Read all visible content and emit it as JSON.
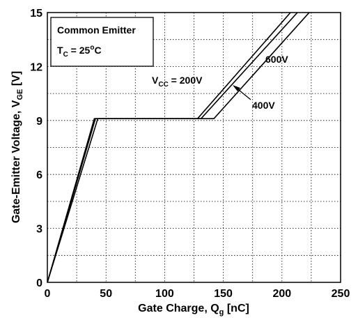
{
  "chart_data": {
    "type": "line",
    "title": "",
    "xlabel": "Gate Charge, Q",
    "xlabel_sub": "g",
    "xlabel_unit": " [nC]",
    "ylabel": "Gate-Emitter Voltage, V",
    "ylabel_sub": "GE",
    "ylabel_unit": " [V]",
    "xlim": [
      0,
      250
    ],
    "ylim": [
      0,
      15
    ],
    "xticks": [
      0,
      50,
      100,
      150,
      200,
      250
    ],
    "yticks": [
      0,
      3,
      6,
      9,
      12,
      15
    ],
    "grid": true,
    "legend_box": {
      "line1": "Common Emitter",
      "line2_main": "T",
      "line2_sub": "C",
      "line2_eq": " = 25",
      "line2_sup": "o",
      "line2_unit": "C"
    },
    "series": [
      {
        "name": "V_CC = 200V",
        "x": [
          0,
          40,
          128,
          210
        ],
        "y": [
          0,
          9.1,
          9.1,
          15.2
        ]
      },
      {
        "name": "400V",
        "x": [
          0,
          41,
          131,
          216
        ],
        "y": [
          0,
          9.1,
          9.1,
          15.2
        ]
      },
      {
        "name": "600V",
        "x": [
          0,
          43,
          142,
          226
        ],
        "y": [
          0,
          9.1,
          9.1,
          15.2
        ]
      }
    ],
    "annotations": {
      "vcc_main": "V",
      "vcc_sub": "CC",
      "vcc_rest": " = 200V",
      "v600": "600V",
      "v400": "400V"
    }
  }
}
